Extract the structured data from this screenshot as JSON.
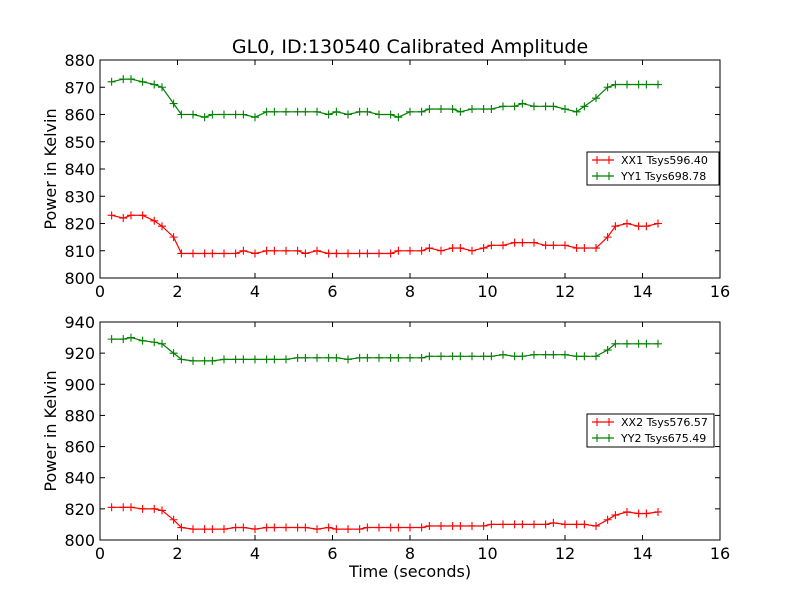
{
  "chart_data": [
    {
      "type": "line",
      "title": "GL0, ID:130540 Calibrated Amplitude",
      "xlabel": "",
      "ylabel": "Power in Kelvin",
      "xlim": [
        0,
        16
      ],
      "ylim": [
        800,
        880
      ],
      "xticks": [
        0,
        2,
        4,
        6,
        8,
        10,
        12,
        14,
        16
      ],
      "yticks": [
        800,
        810,
        820,
        830,
        840,
        850,
        860,
        870,
        880
      ],
      "legend_position": "center-right",
      "x": [
        0.3,
        0.6,
        0.8,
        1.1,
        1.4,
        1.6,
        1.9,
        2.1,
        2.4,
        2.7,
        2.9,
        3.2,
        3.5,
        3.7,
        4.0,
        4.3,
        4.5,
        4.8,
        5.1,
        5.3,
        5.6,
        5.9,
        6.1,
        6.4,
        6.7,
        6.9,
        7.2,
        7.5,
        7.7,
        8.0,
        8.3,
        8.5,
        8.8,
        9.1,
        9.3,
        9.6,
        9.9,
        10.1,
        10.4,
        10.7,
        10.9,
        11.2,
        11.5,
        11.7,
        12.0,
        12.3,
        12.5,
        12.8,
        13.1,
        13.3,
        13.6,
        13.9,
        14.1,
        14.4
      ],
      "series": [
        {
          "name": "XX1 Tsys596.40",
          "color": "#ff0000",
          "values": [
            823,
            822,
            823,
            823,
            821,
            819,
            815,
            809,
            809,
            809,
            809,
            809,
            809,
            810,
            809,
            810,
            810,
            810,
            810,
            809,
            810,
            809,
            809,
            809,
            809,
            809,
            809,
            809,
            810,
            810,
            810,
            811,
            810,
            811,
            811,
            810,
            811,
            812,
            812,
            813,
            813,
            813,
            812,
            812,
            812,
            811,
            811,
            811,
            815,
            819,
            820,
            819,
            819,
            820
          ]
        },
        {
          "name": "YY1 Tsys698.78",
          "color": "#008000",
          "values": [
            872,
            873,
            873,
            872,
            871,
            870,
            864,
            860,
            860,
            859,
            860,
            860,
            860,
            860,
            859,
            861,
            861,
            861,
            861,
            861,
            861,
            860,
            861,
            860,
            861,
            861,
            860,
            860,
            859,
            861,
            861,
            862,
            862,
            862,
            861,
            862,
            862,
            862,
            863,
            863,
            864,
            863,
            863,
            863,
            862,
            861,
            863,
            866,
            870,
            871,
            871,
            871,
            871,
            871
          ]
        }
      ]
    },
    {
      "type": "line",
      "title": "",
      "xlabel": "Time (seconds)",
      "ylabel": "Power in Kelvin",
      "xlim": [
        0,
        16
      ],
      "ylim": [
        800,
        940
      ],
      "xticks": [
        0,
        2,
        4,
        6,
        8,
        10,
        12,
        14,
        16
      ],
      "yticks": [
        800,
        820,
        840,
        860,
        880,
        900,
        920,
        940
      ],
      "legend_position": "center-right",
      "x": [
        0.3,
        0.6,
        0.8,
        1.1,
        1.4,
        1.6,
        1.9,
        2.1,
        2.4,
        2.7,
        2.9,
        3.2,
        3.5,
        3.7,
        4.0,
        4.3,
        4.5,
        4.8,
        5.1,
        5.3,
        5.6,
        5.9,
        6.1,
        6.4,
        6.7,
        6.9,
        7.2,
        7.5,
        7.7,
        8.0,
        8.3,
        8.5,
        8.8,
        9.1,
        9.3,
        9.6,
        9.9,
        10.1,
        10.4,
        10.7,
        10.9,
        11.2,
        11.5,
        11.7,
        12.0,
        12.3,
        12.5,
        12.8,
        13.1,
        13.3,
        13.6,
        13.9,
        14.1,
        14.4
      ],
      "series": [
        {
          "name": "XX2 Tsys576.57",
          "color": "#ff0000",
          "values": [
            821,
            821,
            821,
            820,
            820,
            819,
            813,
            808,
            807,
            807,
            807,
            807,
            808,
            808,
            807,
            808,
            808,
            808,
            808,
            808,
            807,
            808,
            807,
            807,
            807,
            808,
            808,
            808,
            808,
            808,
            808,
            809,
            809,
            809,
            809,
            809,
            809,
            810,
            810,
            810,
            810,
            810,
            810,
            811,
            810,
            810,
            810,
            809,
            813,
            816,
            818,
            817,
            817,
            818
          ]
        },
        {
          "name": "YY2 Tsys675.49",
          "color": "#008000",
          "values": [
            929,
            929,
            930,
            928,
            927,
            926,
            920,
            916,
            915,
            915,
            915,
            916,
            916,
            916,
            916,
            916,
            916,
            916,
            917,
            917,
            917,
            917,
            917,
            916,
            917,
            917,
            917,
            917,
            917,
            917,
            917,
            918,
            918,
            918,
            918,
            918,
            918,
            918,
            919,
            918,
            918,
            919,
            919,
            919,
            919,
            918,
            918,
            918,
            922,
            926,
            926,
            926,
            926,
            926
          ]
        }
      ]
    }
  ]
}
